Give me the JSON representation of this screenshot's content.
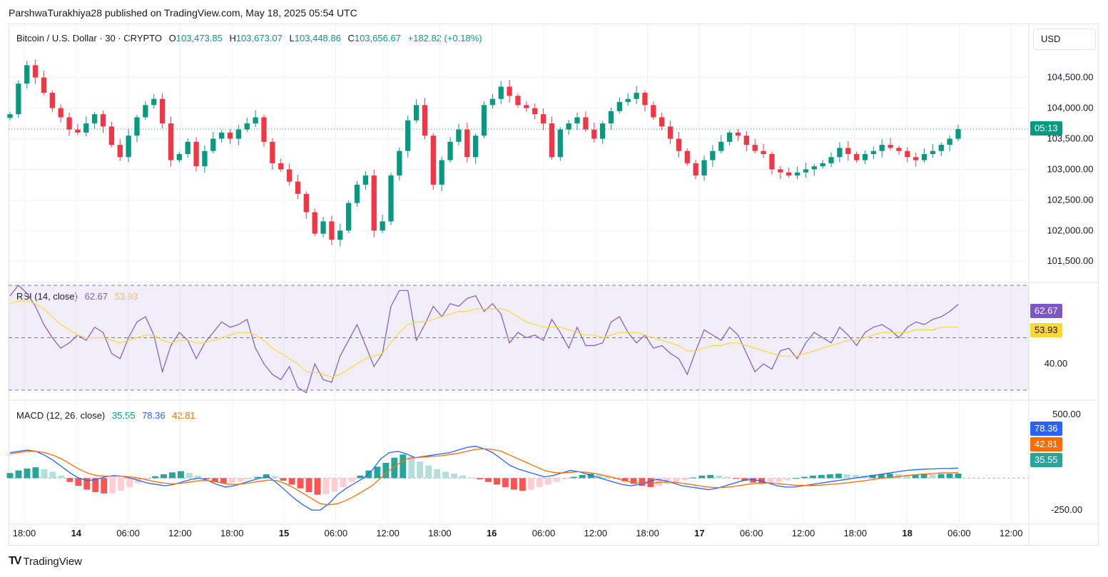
{
  "header": {
    "published": "ParshwaTurakhiya28 published on TradingView.com, May 18, 2025 05:54 UTC"
  },
  "symbol": {
    "name": "Bitcoin / U.S. Dollar · 30 · CRYPTO",
    "open_label": "O",
    "open": "103,473.85",
    "high_label": "H",
    "high": "103,673.07",
    "low_label": "L",
    "low": "103,448.86",
    "close_label": "C",
    "close": "103,656.67",
    "change": "+182.82 (+0.18%)"
  },
  "currency_button": "USD",
  "countdown": "05:13",
  "rsi": {
    "label": "RSI (14, close)",
    "value": "62.67",
    "ma": "53.93"
  },
  "macd": {
    "label": "MACD (12, 26, close)",
    "hist": "35.55",
    "macd": "78.36",
    "signal": "42.81"
  },
  "footer": {
    "brand": "TradingView",
    "logo": "TV"
  },
  "colors": {
    "up": "#089981",
    "down": "#f23645",
    "rsi": "#7e57c2",
    "rsi_ma": "#fdd835",
    "macd": "#2962ff",
    "signal": "#ff6d00"
  },
  "chart_data": [
    {
      "type": "candlestick",
      "title": "Bitcoin / U.S. Dollar · 30 · CRYPTO",
      "ylim": [
        101200,
        104950
      ],
      "y_ticks": [
        "104,500.00",
        "104,000.00",
        "103,500.00",
        "103,000.00",
        "102,500.00",
        "102,000.00",
        "101,500.00"
      ],
      "y_tick_values": [
        104500,
        104000,
        103500,
        103000,
        102500,
        102000,
        101500
      ],
      "x_ticks": [
        "18:00",
        "14",
        "06:00",
        "12:00",
        "18:00",
        "15",
        "06:00",
        "12:00",
        "18:00",
        "16",
        "06:00",
        "12:00",
        "18:00",
        "17",
        "06:00",
        "12:00",
        "18:00",
        "18",
        "06:00",
        "12:00"
      ],
      "last_price": 103656.67,
      "close_path": [
        103900,
        104400,
        104700,
        104500,
        104250,
        104000,
        103850,
        103650,
        103600,
        103750,
        103900,
        103700,
        103400,
        103200,
        103550,
        103850,
        104050,
        104150,
        103750,
        103150,
        103250,
        103450,
        103050,
        103300,
        103500,
        103600,
        103500,
        103650,
        103750,
        103850,
        103450,
        103100,
        103000,
        102800,
        102600,
        102300,
        101950,
        102150,
        101850,
        102000,
        102450,
        102750,
        102900,
        102000,
        102150,
        102900,
        103300,
        103800,
        104050,
        103550,
        102750,
        103150,
        103450,
        103650,
        103200,
        103550,
        104050,
        104150,
        104350,
        104200,
        104050,
        104000,
        103900,
        103750,
        103200,
        103650,
        103750,
        103850,
        103650,
        103500,
        103750,
        103950,
        104100,
        104150,
        104250,
        104050,
        103850,
        103700,
        103500,
        103300,
        103100,
        102900,
        103150,
        103300,
        103450,
        103600,
        103550,
        103400,
        103300,
        103250,
        103000,
        102950,
        102900,
        102950,
        103000,
        103050,
        103100,
        103200,
        103350,
        103250,
        103150,
        103250,
        103300,
        103400,
        103350,
        103300,
        103200,
        103150,
        103250,
        103300,
        103400,
        103500,
        103656
      ]
    },
    {
      "type": "line",
      "title": "RSI (14, close)",
      "ylim": [
        27,
        70
      ],
      "y_ticks": [
        "40.00"
      ],
      "y_tick_values": [
        40
      ],
      "bands": [
        70,
        50,
        30
      ],
      "series": [
        {
          "name": "RSI",
          "values": [
            66,
            70,
            67,
            62,
            55,
            50,
            46,
            48,
            51,
            49,
            54,
            52,
            44,
            42,
            50,
            56,
            58,
            51,
            37,
            47,
            52,
            49,
            42,
            48,
            52,
            56,
            54,
            55,
            57,
            46,
            40,
            36,
            34,
            39,
            31,
            29,
            40,
            34,
            33,
            43,
            49,
            55,
            47,
            39,
            44,
            62,
            68,
            68,
            49,
            55,
            62,
            58,
            63,
            62,
            65,
            66,
            60,
            63,
            59,
            48,
            52,
            50,
            51,
            49,
            57,
            52,
            46,
            54,
            47,
            47,
            48,
            56,
            58,
            52,
            48,
            51,
            46,
            47,
            44,
            42,
            36,
            45,
            53,
            51,
            49,
            54,
            51,
            44,
            37,
            40,
            38,
            45,
            46,
            42,
            48,
            52,
            50,
            48,
            54,
            51,
            47,
            52,
            54,
            55,
            53,
            50,
            54,
            56,
            55,
            57,
            58,
            60,
            62.67
          ]
        },
        {
          "name": "RSI-based MA",
          "values": [
            63,
            64,
            64,
            63,
            61,
            58,
            55,
            53,
            51,
            50,
            50,
            50,
            49,
            48,
            49,
            50,
            51,
            51,
            49,
            48,
            49,
            49,
            48,
            48,
            49,
            50,
            51,
            52,
            52,
            51,
            49,
            46,
            44,
            42,
            40,
            37,
            37,
            36,
            35,
            36,
            38,
            40,
            42,
            43,
            44,
            48,
            52,
            55,
            56,
            56,
            57,
            58,
            59,
            60,
            60,
            61,
            61,
            61,
            61,
            60,
            58,
            56,
            55,
            54,
            54,
            54,
            53,
            52,
            51,
            51,
            50,
            51,
            52,
            52,
            52,
            51,
            50,
            49,
            48,
            47,
            45,
            45,
            46,
            47,
            47,
            48,
            48,
            47,
            46,
            45,
            44,
            43,
            43,
            43,
            44,
            45,
            46,
            47,
            48,
            49,
            49,
            50,
            51,
            52,
            52,
            52,
            52,
            53,
            53,
            53,
            54,
            54,
            53.93
          ]
        }
      ]
    },
    {
      "type": "bar",
      "title": "MACD (12, 26, close)",
      "ylim": [
        -350,
        600
      ],
      "y_ticks": [
        "500.00",
        "-250.00"
      ],
      "y_tick_values": [
        500,
        -250
      ],
      "histogram": [
        40,
        60,
        75,
        85,
        70,
        50,
        20,
        -30,
        -60,
        -90,
        -110,
        -120,
        -115,
        -100,
        -70,
        -40,
        -10,
        15,
        30,
        45,
        55,
        40,
        20,
        -10,
        -30,
        -40,
        -35,
        -25,
        -10,
        10,
        30,
        15,
        -20,
        -50,
        -80,
        -110,
        -130,
        -125,
        -105,
        -70,
        -30,
        20,
        60,
        90,
        120,
        160,
        185,
        170,
        130,
        100,
        70,
        50,
        35,
        20,
        5,
        -10,
        -30,
        -50,
        -70,
        -90,
        -100,
        -90,
        -70,
        -50,
        -30,
        -10,
        10,
        25,
        35,
        30,
        15,
        -5,
        -25,
        -45,
        -60,
        -70,
        -60,
        -45,
        -30,
        -15,
        5,
        20,
        25,
        20,
        10,
        -5,
        -20,
        -35,
        -45,
        -40,
        -30,
        -15,
        0,
        10,
        20,
        25,
        30,
        35,
        30,
        25,
        20,
        25,
        30,
        35,
        30,
        25,
        30,
        35,
        30,
        32,
        35,
        35.55
      ],
      "series": [
        {
          "name": "MACD",
          "values": [
            200,
            210,
            220,
            210,
            180,
            140,
            90,
            40,
            0,
            -20,
            -10,
            10,
            20,
            15,
            0,
            -20,
            -40,
            -50,
            -60,
            -50,
            -30,
            -10,
            0,
            -20,
            -50,
            -70,
            -60,
            -40,
            -20,
            0,
            10,
            -40,
            -100,
            -160,
            -210,
            -250,
            -250,
            -200,
            -130,
            -80,
            -40,
            0,
            60,
            150,
            200,
            210,
            190,
            160,
            170,
            180,
            190,
            200,
            220,
            240,
            250,
            230,
            200,
            150,
            100,
            70,
            50,
            30,
            10,
            20,
            40,
            60,
            50,
            30,
            10,
            -10,
            -30,
            -50,
            -60,
            -50,
            -30,
            -10,
            -20,
            -40,
            -60,
            -70,
            -80,
            -90,
            -80,
            -60,
            -40,
            -20,
            -10,
            -20,
            -40,
            -60,
            -70,
            -70,
            -60,
            -50,
            -40,
            -30,
            -20,
            -10,
            0,
            10,
            20,
            30,
            40,
            50,
            60,
            65,
            70,
            72,
            75,
            76,
            78.36
          ]
        },
        {
          "name": "Signal",
          "values": [
            190,
            200,
            210,
            210,
            200,
            180,
            150,
            110,
            70,
            40,
            20,
            15,
            15,
            15,
            10,
            0,
            -15,
            -30,
            -40,
            -45,
            -40,
            -30,
            -20,
            -20,
            -30,
            -45,
            -50,
            -45,
            -35,
            -25,
            -15,
            -20,
            -45,
            -80,
            -120,
            -160,
            -200,
            -210,
            -200,
            -175,
            -140,
            -100,
            -60,
            0,
            60,
            110,
            150,
            160,
            165,
            170,
            175,
            185,
            195,
            210,
            225,
            230,
            225,
            210,
            180,
            150,
            120,
            90,
            60,
            45,
            40,
            45,
            50,
            45,
            35,
            20,
            5,
            -15,
            -30,
            -40,
            -40,
            -35,
            -30,
            -32,
            -40,
            -50,
            -60,
            -70,
            -75,
            -72,
            -65,
            -55,
            -45,
            -38,
            -38,
            -42,
            -50,
            -55,
            -58,
            -58,
            -55,
            -50,
            -45,
            -38,
            -30,
            -22,
            -12,
            -2,
            5,
            12,
            20,
            26,
            32,
            36,
            40,
            42,
            42.81
          ]
        }
      ]
    }
  ]
}
